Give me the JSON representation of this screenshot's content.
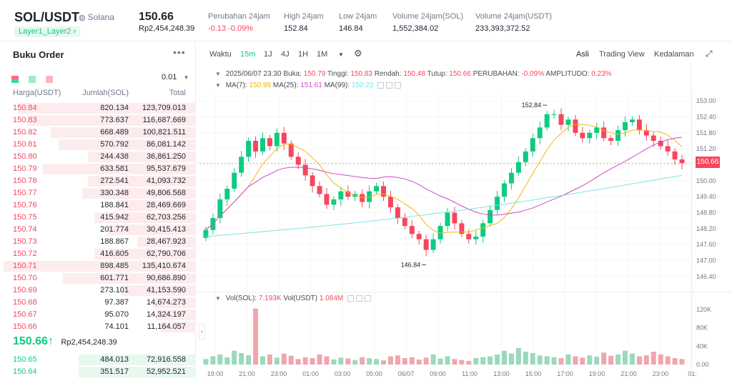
{
  "header": {
    "pair": "SOL/USDT",
    "chain": "Solana",
    "tag": "Layer1_Layer2",
    "last_price": "150.66",
    "last_price_idr": "Rp2,454,248.39",
    "stats": [
      {
        "label": "Perubahan 24jam",
        "value": "-0.13 -0.09%",
        "tone": "red"
      },
      {
        "label": "High 24jam",
        "value": "152.84",
        "tone": ""
      },
      {
        "label": "Low 24jam",
        "value": "146.84",
        "tone": ""
      },
      {
        "label": "Volume 24jam(SOL)",
        "value": "1,552,384.02",
        "tone": ""
      },
      {
        "label": "Volume 24jam(USDT)",
        "value": "233,393,372.52",
        "tone": ""
      }
    ]
  },
  "orderbook": {
    "title": "Buku Order",
    "more": "•••",
    "precision": "0.01",
    "col_price": "Harga(USDT)",
    "col_amount": "Jumlah(SOL)",
    "col_total": "Total",
    "asks": [
      {
        "p": "150.84",
        "a": "820.134",
        "t": "123,709.013",
        "d": 0.91
      },
      {
        "p": "150.83",
        "a": "773.637",
        "t": "116,687.669",
        "d": 0.86
      },
      {
        "p": "150.82",
        "a": "668.489",
        "t": "100,821.511",
        "d": 0.74
      },
      {
        "p": "150.81",
        "a": "570.792",
        "t": "86,081.142",
        "d": 0.7
      },
      {
        "p": "150.80",
        "a": "244.438",
        "t": "36,861.250",
        "d": 0.55
      },
      {
        "p": "150.79",
        "a": "633.581",
        "t": "95,537.679",
        "d": 0.78
      },
      {
        "p": "150.78",
        "a": "272.541",
        "t": "41,093.732",
        "d": 0.55
      },
      {
        "p": "150.77",
        "a": "330.348",
        "t": "49,806.568",
        "d": 0.58
      },
      {
        "p": "150.76",
        "a": "188.841",
        "t": "28,469.669",
        "d": 0.4
      },
      {
        "p": "150.75",
        "a": "415.942",
        "t": "62,703.256",
        "d": 0.52
      },
      {
        "p": "150.74",
        "a": "201.774",
        "t": "30,415.413",
        "d": 0.45
      },
      {
        "p": "150.73",
        "a": "188.867",
        "t": "28,467.923",
        "d": 0.3
      },
      {
        "p": "150.72",
        "a": "416.605",
        "t": "62,790.706",
        "d": 0.52
      },
      {
        "p": "150.71",
        "a": "898.485",
        "t": "135,410.674",
        "d": 0.98
      },
      {
        "p": "150.70",
        "a": "601.771",
        "t": "90,686.890",
        "d": 0.68
      },
      {
        "p": "150.69",
        "a": "273.101",
        "t": "41,153.590",
        "d": 0.38
      },
      {
        "p": "150.68",
        "a": "97.387",
        "t": "14,674.273",
        "d": 0.22
      },
      {
        "p": "150.67",
        "a": "95.070",
        "t": "14,324.197",
        "d": 0.2
      },
      {
        "p": "150.66",
        "a": "74.101",
        "t": "11,164.057",
        "d": 0.18
      }
    ],
    "mid_price": "150.66",
    "mid_arrow": "↑",
    "mid_idr": "Rp2,454,248.39",
    "bids": [
      {
        "p": "150.65",
        "a": "484.013",
        "t": "72,916.558",
        "d": 0.6
      },
      {
        "p": "150.64",
        "a": "351.517",
        "t": "52,952.521",
        "d": 0.6
      }
    ]
  },
  "toolbar": {
    "items": [
      "Waktu",
      "15m",
      "1J",
      "4J",
      "1H",
      "1M"
    ],
    "active": "15m",
    "right": [
      "Asli",
      "Trading View",
      "Kedalaman"
    ],
    "right_active": "Asli"
  },
  "legend": {
    "date": "2025/06/07 23:30",
    "open_label": "Buka:",
    "open": "150.79",
    "high_label": "Tinggi:",
    "high": "150.83",
    "low_label": "Rendah:",
    "low": "150.48",
    "close_label": "Tutup:",
    "close": "150.66",
    "change_label": "PERUBAHAN:",
    "change": "-0.09%",
    "amp_label": "AMPLITUDO:",
    "amp": "0.23%",
    "ma7_label": "MA(7):",
    "ma7": "150.99",
    "ma25_label": "MA(25):",
    "ma25": "151.61",
    "ma99_label": "MA(99):",
    "ma99": "150.22",
    "vol_sol_label": "Vol(SOL):",
    "vol_sol": "7.193K",
    "vol_usdt_label": "Vol(USDT)",
    "vol_usdt": "1.084M"
  },
  "chart_data": {
    "type": "candlestick",
    "price_ticks": [
      "153.00",
      "152.40",
      "151.80",
      "151.20",
      "150.60",
      "150.00",
      "149.40",
      "148.80",
      "148.20",
      "147.60",
      "147.00",
      "146.40"
    ],
    "volume_ticks": [
      "120K",
      "80K",
      "40K",
      "0.00"
    ],
    "x_ticks": [
      "19:00",
      "21:00",
      "23:00",
      "01:00",
      "03:00",
      "05:00",
      "06/07",
      "09:00",
      "11:00",
      "13:00",
      "15:00",
      "17:00",
      "19:00",
      "21:00",
      "23:00",
      "01:"
    ],
    "high_marker": "152.84",
    "low_marker": "146.84",
    "last_price_label": "150.66",
    "closes": [
      148.15,
      148.6,
      149.3,
      149.7,
      150.3,
      150.9,
      151.5,
      151.1,
      151.6,
      151.3,
      151.8,
      151.4,
      150.9,
      150.6,
      150.2,
      149.8,
      149.5,
      149.1,
      149.3,
      149.6,
      149.4,
      149.5,
      149.2,
      149.6,
      149.8,
      149.4,
      149.0,
      148.6,
      148.3,
      148.0,
      147.8,
      147.4,
      147.8,
      148.3,
      148.8,
      148.4,
      148.0,
      147.8,
      147.9,
      148.4,
      148.9,
      149.4,
      149.9,
      150.3,
      150.7,
      151.1,
      151.6,
      152.0,
      152.5,
      152.5,
      152.1,
      152.3,
      151.8,
      151.6,
      151.8,
      152.0,
      151.6,
      151.5,
      151.9,
      152.2,
      152.3,
      151.9,
      151.7,
      151.5,
      151.3,
      151.1,
      150.8,
      150.66
    ],
    "volumes": [
      12,
      18,
      22,
      16,
      30,
      25,
      20,
      14,
      18,
      22,
      15,
      24,
      19,
      12,
      16,
      14,
      22,
      18,
      11,
      15,
      13,
      10,
      16,
      14,
      12,
      9,
      18,
      20,
      14,
      16,
      11,
      15,
      22,
      13,
      18,
      12,
      10,
      8,
      14,
      16,
      18,
      22,
      30,
      24,
      36,
      28,
      25,
      20,
      18,
      16,
      14,
      22,
      18,
      15,
      20,
      17,
      26,
      19,
      22,
      30,
      24,
      18,
      20,
      28,
      22,
      18,
      14,
      12
    ],
    "volume_spike": 122
  }
}
